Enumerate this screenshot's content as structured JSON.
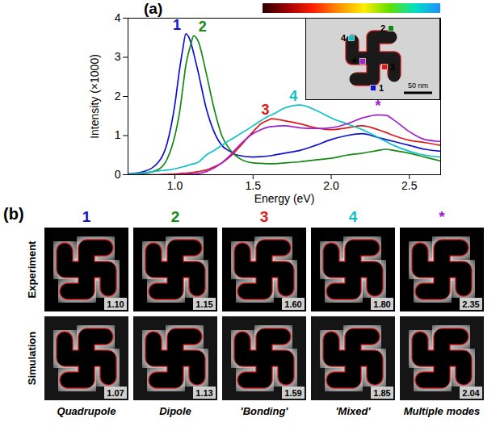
{
  "chart_data": {
    "type": "line",
    "panel_label": "(a)",
    "x_label": "Energy (eV)",
    "y_label": "Intensity (×1000)",
    "xlim": [
      0.7,
      2.7
    ],
    "xticks": [
      {
        "value": 1,
        "label": "1.0"
      },
      1.5,
      {
        "value": 2,
        "label": "2.0"
      },
      2.5
    ],
    "ylim": [
      0,
      4
    ],
    "yticks": [
      0,
      1,
      2,
      3,
      4
    ],
    "grid": false,
    "x": [
      0.7,
      0.8,
      0.9,
      0.95,
      1.0,
      1.03,
      1.05,
      1.07,
      1.1,
      1.12,
      1.15,
      1.2,
      1.25,
      1.3,
      1.35,
      1.4,
      1.5,
      1.55,
      1.6,
      1.62,
      1.7,
      1.8,
      1.9,
      2.0,
      2.1,
      2.2,
      2.3,
      2.35,
      2.4,
      2.5,
      2.6,
      2.7
    ],
    "series": [
      {
        "name": "1",
        "color": "#1010d0",
        "values": [
          0.02,
          0.08,
          0.35,
          0.8,
          1.8,
          2.7,
          3.2,
          3.6,
          3.4,
          3.1,
          2.6,
          1.7,
          1.1,
          0.75,
          0.6,
          0.5,
          0.45,
          0.46,
          0.48,
          0.49,
          0.55,
          0.62,
          0.75,
          0.9,
          1.0,
          1.05,
          0.95,
          0.9,
          0.85,
          0.75,
          0.65,
          0.6
        ]
      },
      {
        "name": "2",
        "color": "#148a14",
        "values": [
          0.0,
          0.03,
          0.15,
          0.4,
          1.0,
          1.6,
          2.2,
          2.8,
          3.3,
          3.55,
          3.4,
          2.6,
          1.7,
          1.0,
          0.65,
          0.45,
          0.3,
          0.29,
          0.28,
          0.28,
          0.3,
          0.33,
          0.38,
          0.42,
          0.5,
          0.55,
          0.62,
          0.65,
          0.62,
          0.55,
          0.45,
          0.35
        ]
      },
      {
        "name": "3",
        "color": "#e01818",
        "values": [
          0,
          0,
          0,
          0.01,
          0.02,
          0.03,
          0.04,
          0.04,
          0.05,
          0.06,
          0.08,
          0.12,
          0.2,
          0.3,
          0.45,
          0.65,
          1.1,
          1.3,
          1.4,
          1.43,
          1.38,
          1.3,
          1.2,
          1.15,
          1.2,
          1.25,
          1.15,
          1.08,
          1.0,
          0.88,
          0.82,
          0.75
        ]
      },
      {
        "name": "4",
        "color": "#10c0c8",
        "values": [
          0.02,
          0.05,
          0.1,
          0.12,
          0.15,
          0.18,
          0.2,
          0.22,
          0.26,
          0.28,
          0.32,
          0.5,
          0.62,
          0.75,
          0.88,
          1.0,
          1.25,
          1.38,
          1.5,
          1.53,
          1.7,
          1.78,
          1.65,
          1.45,
          1.3,
          1.15,
          0.95,
          0.85,
          0.75,
          0.6,
          0.5,
          0.45
        ]
      },
      {
        "name": "*",
        "color": "#a020d0",
        "values": [
          0,
          0,
          0,
          0,
          0,
          0.01,
          0.01,
          0.01,
          0.02,
          0.02,
          0.03,
          0.08,
          0.17,
          0.3,
          0.48,
          0.7,
          1.05,
          1.15,
          1.22,
          1.23,
          1.25,
          1.2,
          1.18,
          1.2,
          1.3,
          1.45,
          1.53,
          1.52,
          1.4,
          1.1,
          0.9,
          0.85
        ]
      }
    ],
    "inset": {
      "scale_bar": "50 nm",
      "markers": [
        "1",
        "2",
        "3",
        "4",
        "*"
      ]
    }
  },
  "maps": {
    "panel_label": "(b)",
    "rows": [
      "Experiment",
      "Simulation"
    ],
    "columns": [
      {
        "label": "1",
        "color": "#1010d0",
        "experiment": "1.10",
        "simulation": "1.07",
        "caption": "Quadrupole"
      },
      {
        "label": "2",
        "color": "#148a14",
        "experiment": "1.15",
        "simulation": "1.13",
        "caption": "Dipole"
      },
      {
        "label": "3",
        "color": "#e01818",
        "experiment": "1.60",
        "simulation": "1.59",
        "caption": "'Bonding'"
      },
      {
        "label": "4",
        "color": "#10c0c8",
        "experiment": "1.80",
        "simulation": "1.85",
        "caption": "'Mixed'"
      },
      {
        "label": "*",
        "color": "#a020d0",
        "experiment": "2.35",
        "simulation": "2.04",
        "caption": "Multiple modes"
      }
    ]
  }
}
